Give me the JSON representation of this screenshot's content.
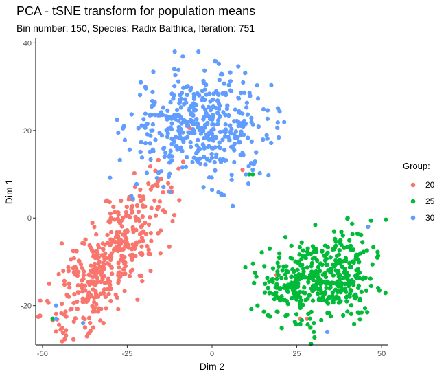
{
  "chart_data": {
    "type": "scatter",
    "title": "PCA - tSNE transform for population means",
    "subtitle": "Bin number: 150, Species: Radix Balthica, Iteration: 751",
    "xlabel": "Dim 2",
    "ylabel": "Dim 1",
    "xlim": [
      -52,
      52
    ],
    "ylim": [
      -29,
      41
    ],
    "xticks": [
      -50,
      -25,
      0,
      25,
      50
    ],
    "yticks": [
      -20,
      0,
      20,
      40
    ],
    "grid": false,
    "legend": {
      "title": "Group:",
      "position": "right",
      "entries": [
        "20",
        "25",
        "30"
      ]
    },
    "colors": {
      "20": "#F8766D",
      "25": "#00BA38",
      "30": "#619CFF"
    },
    "series": [
      {
        "name": "20",
        "color": "#F8766D",
        "cluster": {
          "center": [
            -30.5,
            -9.5
          ],
          "count": 430
        },
        "outliers": [
          [
            -43,
            -22.5
          ],
          [
            -36,
            -26
          ],
          [
            -35,
            -25
          ],
          [
            -32,
            -24
          ],
          [
            -48,
            -15
          ],
          [
            -15,
            9
          ],
          [
            -12,
            7
          ],
          [
            18,
            -14
          ],
          [
            26,
            -23
          ],
          [
            28,
            -23
          ],
          [
            9,
            11
          ],
          [
            19,
            -13
          ]
        ]
      },
      {
        "name": "25",
        "color": "#00BA38",
        "cluster": {
          "center": [
            32,
            -14
          ],
          "count": 430
        },
        "outliers": [
          [
            -47,
            -23
          ],
          [
            11,
            10
          ],
          [
            12,
            10
          ],
          [
            29,
            -25
          ],
          [
            30,
            -26
          ],
          [
            40,
            0
          ],
          [
            17,
            -7
          ],
          [
            49,
            -16
          ]
        ]
      },
      {
        "name": "30",
        "color": "#619CFF",
        "cluster": {
          "center": [
            -3,
            21
          ],
          "count": 430
        },
        "outliers": [
          [
            -46,
            -20
          ],
          [
            -46,
            -23
          ],
          [
            -38,
            -24
          ],
          [
            46,
            -2
          ],
          [
            34,
            -26
          ],
          [
            -11,
            38
          ],
          [
            -4,
            38
          ],
          [
            -21,
            31
          ],
          [
            12,
            11
          ],
          [
            13,
            15
          ],
          [
            10,
            10
          ],
          [
            -14,
            14
          ]
        ]
      }
    ]
  }
}
